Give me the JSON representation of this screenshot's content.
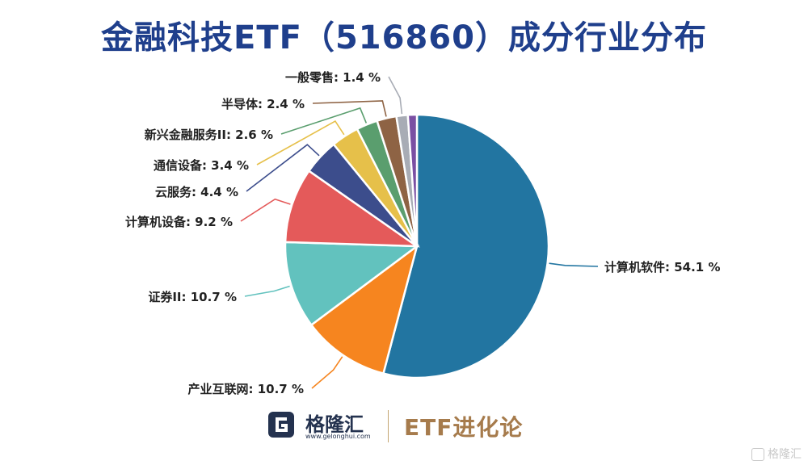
{
  "title": "金融科技ETF（516860）成分行业分布",
  "chart_data": {
    "type": "pie",
    "unit": "%",
    "slices": [
      {
        "label": "计算机软件",
        "value": 54.1,
        "color": "#2275a1"
      },
      {
        "label": "产业互联网",
        "value": 10.7,
        "color": "#f6851f"
      },
      {
        "label": "证券II",
        "value": 10.7,
        "color": "#62c2be"
      },
      {
        "label": "计算机设备",
        "value": 9.2,
        "color": "#e45a5a"
      },
      {
        "label": "云服务",
        "value": 4.4,
        "color": "#3c4d8c"
      },
      {
        "label": "通信设备",
        "value": 3.4,
        "color": "#e6c04a"
      },
      {
        "label": "新兴金融服务II",
        "value": 2.6,
        "color": "#5a9e6e"
      },
      {
        "label": "半导体",
        "value": 2.4,
        "color": "#8e6344"
      },
      {
        "label": "一般零售",
        "value": 1.4,
        "color": "#a8acb5"
      },
      {
        "label": "",
        "value": 1.1,
        "color": "#7a4fa3"
      }
    ],
    "label_texts": [
      "计算机软件: 54.1 %",
      "产业互联网: 10.7 %",
      "证券II: 10.7 %",
      "计算机设备: 9.2 %",
      "云服务: 4.4 %",
      "通信设备: 3.4 %",
      "新兴金融服务II: 2.6 %",
      "半导体: 2.4 %",
      "一般零售: 1.4 %",
      ""
    ]
  },
  "footer": {
    "brand_name": "格隆汇",
    "brand_url": "www.gelonghui.com",
    "series_name": "ETF进化论"
  },
  "watermark": "格隆汇"
}
